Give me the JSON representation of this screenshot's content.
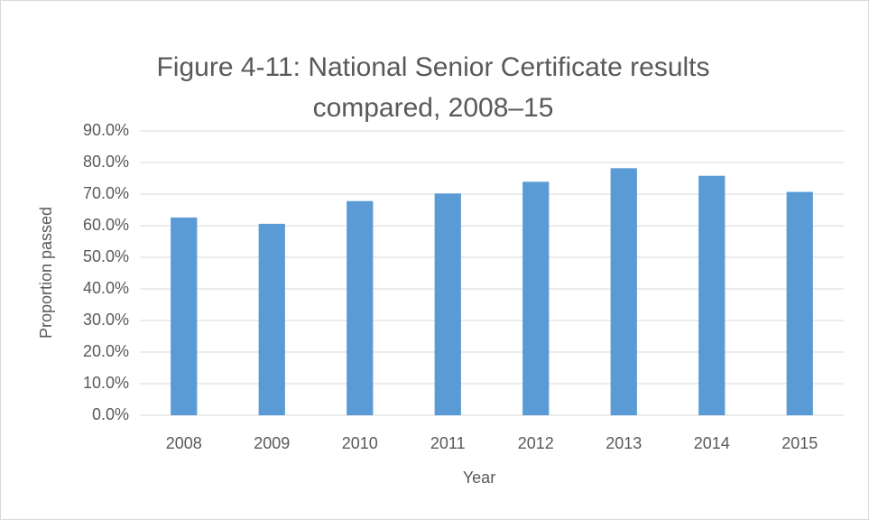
{
  "chart_data": {
    "type": "bar",
    "title": "Figure 4-11: National Senior Certificate results compared, 2008–15",
    "x_label": "Year",
    "y_label": "Proportion passed",
    "categories": [
      "2008",
      "2009",
      "2010",
      "2011",
      "2012",
      "2013",
      "2014",
      "2015"
    ],
    "values": [
      62.6,
      60.6,
      67.8,
      70.2,
      73.9,
      78.2,
      75.8,
      70.7
    ],
    "color": "#5b9bd5",
    "ylim": [
      0,
      90
    ],
    "yticks": [
      {
        "value": 0,
        "label": "0.0%"
      },
      {
        "value": 10,
        "label": "10.0%"
      },
      {
        "value": 20,
        "label": "20.0%"
      },
      {
        "value": 30,
        "label": "30.0%"
      },
      {
        "value": 40,
        "label": "40.0%"
      },
      {
        "value": 50,
        "label": "50.0%"
      },
      {
        "value": 60,
        "label": "60.0%"
      },
      {
        "value": 70,
        "label": "70.0%"
      },
      {
        "value": 80,
        "label": "80.0%"
      },
      {
        "value": 90,
        "label": "90.0%"
      }
    ],
    "grid": true
  }
}
